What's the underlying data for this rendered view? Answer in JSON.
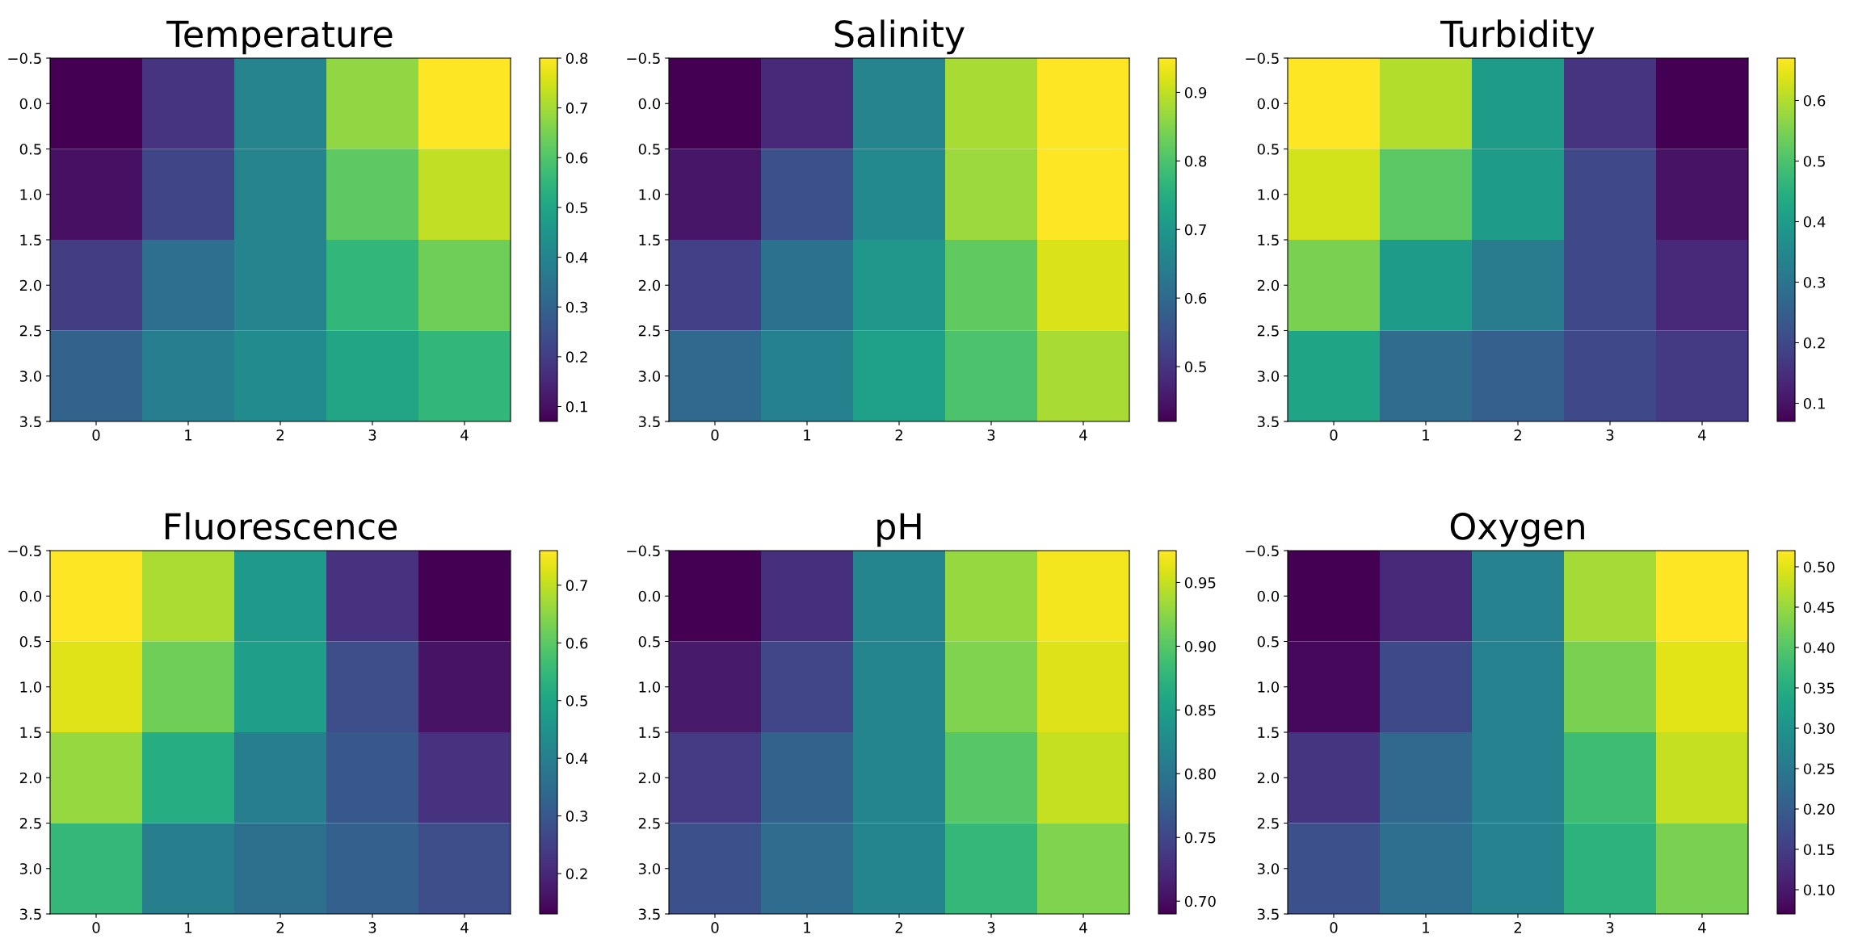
{
  "chart_data": [
    {
      "type": "heatmap",
      "title": "Temperature",
      "categories": [
        "0",
        "1",
        "2",
        "3",
        "4"
      ],
      "ylim": [
        3.5,
        -0.5
      ],
      "yticks": [
        {
          "value": -0.5,
          "label": "−0.5"
        },
        {
          "value": 0,
          "label": "0.0"
        },
        0.5,
        {
          "value": 1,
          "label": "1.0"
        },
        1.5,
        {
          "value": 2,
          "label": "2.0"
        },
        2.5,
        {
          "value": 3,
          "label": "3.0"
        },
        3.5
      ],
      "clim": [
        0.07,
        0.8
      ],
      "cticks": [
        0.1,
        0.2,
        0.3,
        0.4,
        0.5,
        0.6,
        0.7,
        0.8
      ],
      "cells": [
        [
          0.07,
          0.18,
          0.4,
          0.68,
          0.8
        ],
        [
          0.1,
          0.22,
          0.4,
          0.62,
          0.73
        ],
        [
          0.2,
          0.33,
          0.4,
          0.55,
          0.64
        ],
        [
          0.3,
          0.38,
          0.42,
          0.5,
          0.55
        ]
      ]
    },
    {
      "type": "heatmap",
      "title": "Salinity",
      "categories": [
        "0",
        "1",
        "2",
        "3",
        "4"
      ],
      "ylim": [
        3.5,
        -0.5
      ],
      "yticks": [
        {
          "value": -0.5,
          "label": "−0.5"
        },
        {
          "value": 0,
          "label": "0.0"
        },
        0.5,
        {
          "value": 1,
          "label": "1.0"
        },
        1.5,
        {
          "value": 2,
          "label": "2.0"
        },
        2.5,
        {
          "value": 3,
          "label": "3.0"
        },
        3.5
      ],
      "clim": [
        0.42,
        0.95
      ],
      "cticks": [
        0.5,
        0.6,
        0.7,
        0.8,
        0.9
      ],
      "cells": [
        [
          0.42,
          0.48,
          0.66,
          0.88,
          0.95
        ],
        [
          0.45,
          0.55,
          0.67,
          0.87,
          0.95
        ],
        [
          0.52,
          0.62,
          0.7,
          0.82,
          0.92
        ],
        [
          0.6,
          0.65,
          0.72,
          0.8,
          0.88
        ]
      ]
    },
    {
      "type": "heatmap",
      "title": "Turbidity",
      "categories": [
        "0",
        "1",
        "2",
        "3",
        "4"
      ],
      "ylim": [
        3.5,
        -0.5
      ],
      "yticks": [
        {
          "value": -0.5,
          "label": "−0.5"
        },
        {
          "value": 0,
          "label": "0.0"
        },
        0.5,
        {
          "value": 1,
          "label": "1.0"
        },
        1.5,
        {
          "value": 2,
          "label": "2.0"
        },
        2.5,
        {
          "value": 3,
          "label": "3.0"
        },
        3.5
      ],
      "clim": [
        0.07,
        0.67
      ],
      "cticks": [
        0.1,
        0.2,
        0.3,
        0.4,
        0.5,
        0.6
      ],
      "cells": [
        [
          0.67,
          0.6,
          0.4,
          0.16,
          0.07
        ],
        [
          0.63,
          0.52,
          0.4,
          0.2,
          0.1
        ],
        [
          0.55,
          0.4,
          0.32,
          0.2,
          0.14
        ],
        [
          0.42,
          0.28,
          0.25,
          0.2,
          0.17
        ]
      ]
    },
    {
      "type": "heatmap",
      "title": "Fluorescence",
      "categories": [
        "0",
        "1",
        "2",
        "3",
        "4"
      ],
      "ylim": [
        3.5,
        -0.5
      ],
      "yticks": [
        {
          "value": -0.5,
          "label": "−0.5"
        },
        {
          "value": 0,
          "label": "0.0"
        },
        0.5,
        {
          "value": 1,
          "label": "1.0"
        },
        1.5,
        {
          "value": 2,
          "label": "2.0"
        },
        2.5,
        {
          "value": 3,
          "label": "3.0"
        },
        3.5
      ],
      "clim": [
        0.13,
        0.76
      ],
      "cticks": [
        0.2,
        0.3,
        0.4,
        0.5,
        0.6,
        0.7
      ],
      "cells": [
        [
          0.76,
          0.68,
          0.47,
          0.22,
          0.13
        ],
        [
          0.73,
          0.62,
          0.48,
          0.28,
          0.16
        ],
        [
          0.66,
          0.52,
          0.4,
          0.3,
          0.22
        ],
        [
          0.55,
          0.4,
          0.36,
          0.32,
          0.28
        ]
      ]
    },
    {
      "type": "heatmap",
      "title": "pH",
      "categories": [
        "0",
        "1",
        "2",
        "3",
        "4"
      ],
      "ylim": [
        3.5,
        -0.5
      ],
      "yticks": [
        {
          "value": -0.5,
          "label": "−0.5"
        },
        {
          "value": 0,
          "label": "0.0"
        },
        0.5,
        {
          "value": 1,
          "label": "1.0"
        },
        1.5,
        {
          "value": 2,
          "label": "2.0"
        },
        2.5,
        {
          "value": 3,
          "label": "3.0"
        },
        3.5
      ],
      "clim": [
        0.69,
        0.975
      ],
      "cticks": [
        {
          "value": 0.7,
          "label": "0.70"
        },
        0.75,
        {
          "value": 0.8,
          "label": "0.80"
        },
        0.85,
        {
          "value": 0.9,
          "label": "0.90"
        },
        0.95
      ],
      "cells": [
        [
          0.69,
          0.73,
          0.82,
          0.93,
          0.97
        ],
        [
          0.71,
          0.75,
          0.82,
          0.92,
          0.96
        ],
        [
          0.74,
          0.78,
          0.82,
          0.9,
          0.95
        ],
        [
          0.76,
          0.79,
          0.82,
          0.88,
          0.92
        ]
      ]
    },
    {
      "type": "heatmap",
      "title": "Oxygen",
      "categories": [
        "0",
        "1",
        "2",
        "3",
        "4"
      ],
      "ylim": [
        3.5,
        -0.5
      ],
      "yticks": [
        {
          "value": -0.5,
          "label": "−0.5"
        },
        {
          "value": 0,
          "label": "0.0"
        },
        0.5,
        {
          "value": 1,
          "label": "1.0"
        },
        1.5,
        {
          "value": 2,
          "label": "2.0"
        },
        2.5,
        {
          "value": 3,
          "label": "3.0"
        },
        3.5
      ],
      "clim": [
        0.07,
        0.52
      ],
      "cticks": [
        {
          "value": 0.1,
          "label": "0.10"
        },
        0.15,
        {
          "value": 0.2,
          "label": "0.20"
        },
        0.25,
        {
          "value": 0.3,
          "label": "0.30"
        },
        0.35,
        {
          "value": 0.4,
          "label": "0.40"
        },
        0.45,
        {
          "value": 0.5,
          "label": "0.50"
        }
      ],
      "cells": [
        [
          0.07,
          0.12,
          0.27,
          0.46,
          0.52
        ],
        [
          0.08,
          0.17,
          0.27,
          0.43,
          0.5
        ],
        [
          0.14,
          0.22,
          0.27,
          0.38,
          0.48
        ],
        [
          0.18,
          0.23,
          0.27,
          0.36,
          0.43
        ]
      ]
    }
  ]
}
